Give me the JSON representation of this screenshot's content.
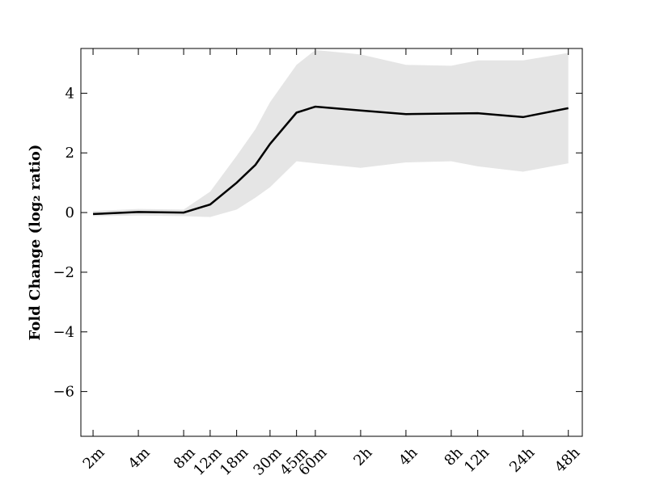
{
  "chart_data": {
    "type": "line",
    "y_label": "Fold Change (log₂ ratio)",
    "x": [
      2,
      4,
      8,
      12,
      18,
      24,
      30,
      45,
      60,
      120,
      240,
      480,
      720,
      1440,
      2880
    ],
    "series": [
      {
        "color": "#000000",
        "values": [
          -0.05,
          0.02,
          0.0,
          0.27,
          1.0,
          1.6,
          2.3,
          3.35,
          3.55,
          3.42,
          3.3,
          3.32,
          3.33,
          3.2,
          3.5
        ]
      }
    ],
    "band": {
      "color": "#e5e5e5",
      "upper": [
        0.05,
        0.12,
        0.1,
        0.7,
        1.9,
        2.8,
        3.7,
        4.95,
        5.45,
        5.3,
        4.95,
        4.92,
        5.1,
        5.1,
        5.35
      ],
      "lower": [
        -0.12,
        -0.1,
        -0.12,
        -0.15,
        0.1,
        0.5,
        0.85,
        1.72,
        1.65,
        1.5,
        1.68,
        1.72,
        1.55,
        1.37,
        1.65
      ]
    },
    "xscale": "log2",
    "xlim": [
      1.66,
      3566
    ],
    "xticks": [
      {
        "value": 2,
        "label": "2m"
      },
      {
        "value": 4,
        "label": "4m"
      },
      {
        "value": 8,
        "label": "8m"
      },
      {
        "value": 12,
        "label": "12m"
      },
      {
        "value": 18,
        "label": "18m"
      },
      {
        "value": 30,
        "label": "30m"
      },
      {
        "value": 45,
        "label": "45m"
      },
      {
        "value": 60,
        "label": "60m"
      },
      {
        "value": 120,
        "label": "2h"
      },
      {
        "value": 240,
        "label": "4h"
      },
      {
        "value": 480,
        "label": "8h"
      },
      {
        "value": 720,
        "label": "12h"
      },
      {
        "value": 1440,
        "label": "24h"
      },
      {
        "value": 2880,
        "label": "48h"
      }
    ],
    "ylim": [
      -7.5,
      5.5
    ],
    "yticks": [
      {
        "value": -6,
        "label": "−6"
      },
      {
        "value": -4,
        "label": "−4"
      },
      {
        "value": -2,
        "label": "−2"
      },
      0,
      2,
      4
    ]
  }
}
